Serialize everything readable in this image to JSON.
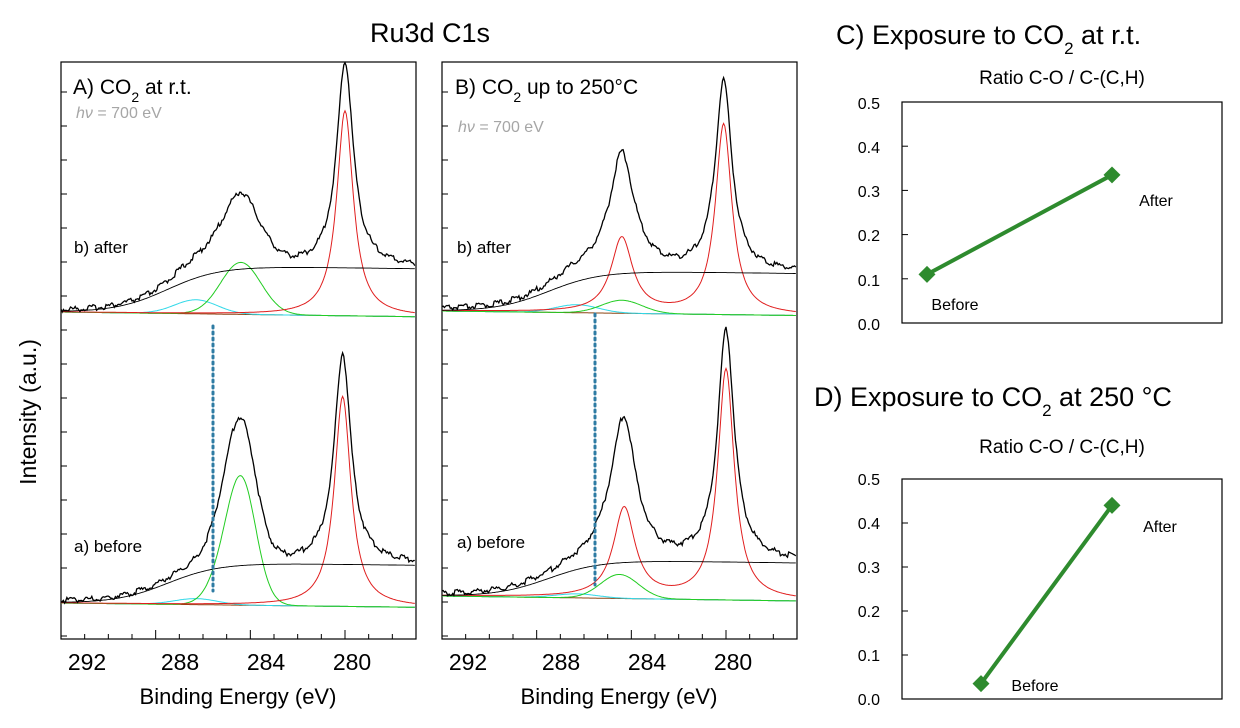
{
  "figure_title": "Ru3d C1s",
  "y_axis_label": "Intensity (a.u.)",
  "spectra_panels": [
    {
      "label_pre": "A) CO",
      "label_sub": "2",
      "label_post": " at r.t.",
      "photon_energy_italic": "hν",
      "photon_energy_text": " = 700 eV",
      "curve_top_label": "b) after",
      "curve_bottom_label": "a) before",
      "x_label": "Binding Energy (eV)",
      "x_ticks": [
        "292",
        "288",
        "284",
        "280"
      ]
    },
    {
      "label_pre": "B) CO",
      "label_sub": "2",
      "label_post": " up to 250°C",
      "photon_energy_italic": "hν",
      "photon_energy_text": " = 700 eV",
      "curve_top_label": "b) after",
      "curve_bottom_label": "a) before",
      "x_label": "Binding Energy (eV)",
      "x_ticks": [
        "292",
        "288",
        "284",
        "280"
      ]
    }
  ],
  "ratio_panels": [
    {
      "header_pre": "C) Exposure to CO",
      "header_sub": "2",
      "header_post": " at r.t.",
      "subtitle": "Ratio C-O / C-(C,H)",
      "y_ticks": [
        "0.5",
        "0.4",
        "0.3",
        "0.2",
        "0.1",
        "0.0"
      ],
      "point_labels": [
        "Before",
        "After"
      ]
    },
    {
      "header_pre": "D) Exposure to CO",
      "header_sub": "2",
      "header_post": " at 250 °C",
      "subtitle": "Ratio C-O / C-(C,H)",
      "y_ticks": [
        "0.5",
        "0.4",
        "0.3",
        "0.2",
        "0.1",
        "0.0"
      ],
      "point_labels": [
        "Before",
        "After"
      ]
    }
  ],
  "chart_data": [
    {
      "type": "line",
      "panel": "A",
      "xlabel": "Binding Energy (eV)",
      "ylabel": "Intensity (a.u.)",
      "xlim": [
        292,
        277
      ],
      "x_reversed": true,
      "series": [
        {
          "name": "b) after",
          "peaks_eV": [
            286.3,
            284.4,
            280.0
          ]
        },
        {
          "name": "a) before",
          "peaks_eV": [
            286.3,
            284.6,
            280.1
          ]
        }
      ],
      "colors": {
        "envelope": "#000000",
        "ru3d": "#e01e1e",
        "c_ch": "#22cc22",
        "c_o": "#30d8e8",
        "background": "#8b4513",
        "marker_line": "#2e7ba3"
      }
    },
    {
      "type": "line",
      "panel": "B",
      "xlabel": "Binding Energy (eV)",
      "ylabel": "Intensity (a.u.)",
      "xlim": [
        292,
        277
      ],
      "x_reversed": true,
      "series": [
        {
          "name": "b) after",
          "peaks_eV": [
            286.3,
            284.4,
            280.0
          ]
        },
        {
          "name": "a) before",
          "peaks_eV": [
            286.3,
            284.4,
            280.0
          ]
        }
      ]
    },
    {
      "type": "line",
      "panel": "C",
      "title": "Ratio C-O / C-(C,H)",
      "categories": [
        "Before",
        "After"
      ],
      "values": [
        0.11,
        0.335
      ],
      "ylim": [
        0,
        0.5
      ],
      "color": "#2e8b2e"
    },
    {
      "type": "line",
      "panel": "D",
      "title": "Ratio C-O / C-(C,H)",
      "categories": [
        "Before",
        "After"
      ],
      "values": [
        0.035,
        0.44
      ],
      "ylim": [
        0,
        0.5
      ],
      "color": "#2e8b2e"
    }
  ]
}
